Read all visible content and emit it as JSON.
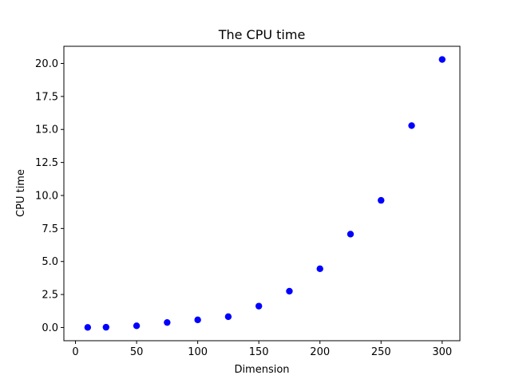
{
  "chart_data": {
    "type": "scatter",
    "title": "The CPU time",
    "xlabel": "Dimension",
    "ylabel": "CPU time",
    "xlim": [
      -9.5,
      314.5
    ],
    "ylim": [
      -1.0,
      21.3
    ],
    "xticks": [
      0,
      50,
      100,
      150,
      200,
      250,
      300
    ],
    "xtick_labels": [
      "0",
      "50",
      "100",
      "150",
      "200",
      "250",
      "300"
    ],
    "yticks": [
      0.0,
      2.5,
      5.0,
      7.5,
      10.0,
      12.5,
      15.0,
      17.5,
      20.0
    ],
    "ytick_labels": [
      "0.0",
      "2.5",
      "5.0",
      "7.5",
      "10.0",
      "12.5",
      "15.0",
      "17.5",
      "20.0"
    ],
    "grid": false,
    "legend": "none",
    "series": [
      {
        "color": "#0000ff",
        "marker": "circle",
        "x": [
          10,
          25,
          50,
          75,
          100,
          125,
          150,
          175,
          200,
          225,
          250,
          275,
          300
        ],
        "y": [
          0.01,
          0.02,
          0.13,
          0.38,
          0.58,
          0.82,
          1.62,
          2.75,
          4.45,
          7.07,
          9.63,
          15.29,
          20.3
        ]
      }
    ]
  }
}
